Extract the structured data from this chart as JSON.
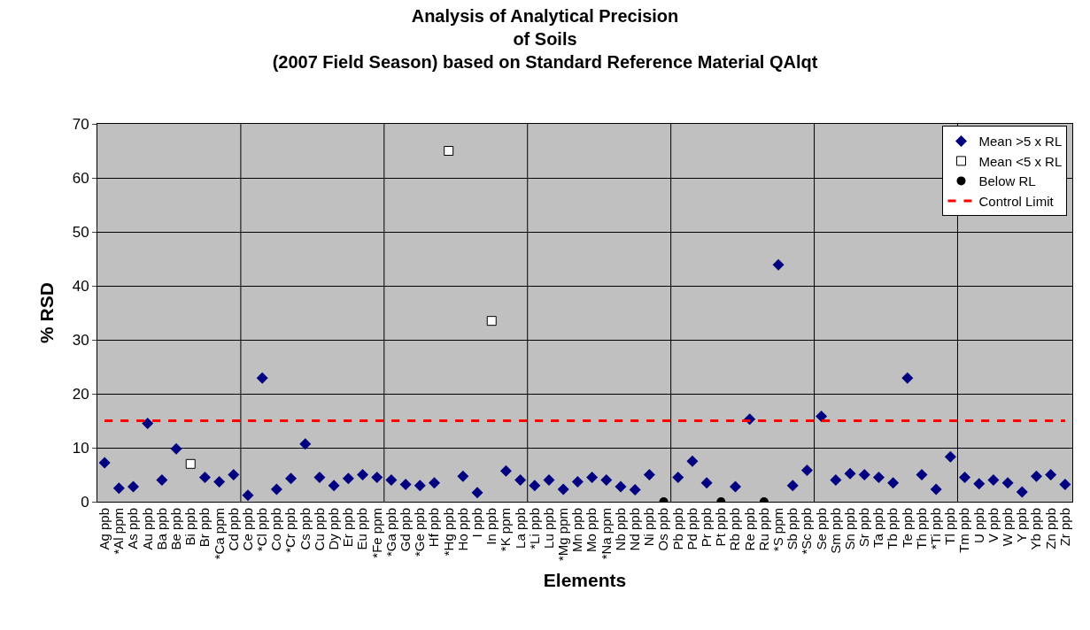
{
  "chart_data": {
    "type": "scatter",
    "title": "Analysis of Analytical Precision\nof Soils\n(2007 Field Season) based on Standard Reference Material QAlqt",
    "xlabel": "Elements",
    "ylabel": "% RSD",
    "categories": [
      "Ag ppb",
      "*Al ppm",
      "As ppb",
      "Au ppb",
      "Ba ppb",
      "Be ppb",
      "Bi ppb",
      "Br ppb",
      "*Ca ppm",
      "Cd ppb",
      "Ce ppb",
      "*Cl ppb",
      "Co ppb",
      "*Cr ppb",
      "Cs ppb",
      "Cu ppb",
      "Dy ppb",
      "Er ppb",
      "Eu ppb",
      "*Fe ppm",
      "*Ga ppb",
      "Gd ppb",
      "*Ge ppb",
      "Hf ppb",
      "*Hg ppb",
      "Ho ppb",
      "I ppb",
      "In ppb",
      "*K ppm",
      "La ppb",
      "*Li ppb",
      "Lu ppb",
      "*Mg ppm",
      "Mn ppb",
      "Mo ppb",
      "*Na ppm",
      "Nb ppb",
      "Nd ppb",
      "Ni ppb",
      "Os ppb",
      "Pb ppb",
      "Pd ppb",
      "Pr ppb",
      "Pt ppb",
      "Rb ppb",
      "Re ppb",
      "Ru ppb",
      "*S ppm",
      "Sb ppb",
      "*Sc ppb",
      "Se ppb",
      "Sm ppb",
      "Sn ppb",
      "Sr ppb",
      "Ta ppb",
      "Tb ppb",
      "Te ppb",
      "Th ppb",
      "*Ti ppb",
      "Tl ppb",
      "Tm ppb",
      "U ppb",
      "V ppb",
      "W ppb",
      "Y ppb",
      "Yb ppb",
      "Zn ppb",
      "Zr ppb"
    ],
    "series": [
      {
        "name": "Mean >5 x RL",
        "color": "#000080",
        "marker": "diamond",
        "values": [
          7.2,
          2.5,
          2.8,
          14.5,
          4.0,
          9.8,
          null,
          4.5,
          3.7,
          5.0,
          1.2,
          22.9,
          2.3,
          4.3,
          10.7,
          4.5,
          3.0,
          4.3,
          5.0,
          4.5,
          4.0,
          3.2,
          3.0,
          3.5,
          null,
          4.7,
          1.7,
          null,
          5.7,
          4.0,
          3.0,
          4.0,
          2.3,
          3.7,
          4.5,
          4.0,
          2.8,
          2.2,
          5.0,
          null,
          4.5,
          7.5,
          3.5,
          null,
          2.8,
          15.3,
          null,
          43.9,
          3.0,
          5.8,
          15.8,
          4.0,
          5.2,
          5.0,
          4.5,
          3.5,
          22.9,
          5.0,
          2.3,
          8.3,
          4.5,
          3.3,
          4.0,
          3.5,
          1.8,
          4.7,
          5.0,
          3.2
        ]
      },
      {
        "name": "Mean <5 x RL",
        "color": "#ffffff",
        "marker": "square",
        "values": [
          null,
          null,
          null,
          null,
          null,
          null,
          7.0,
          null,
          null,
          null,
          null,
          null,
          null,
          null,
          null,
          null,
          null,
          null,
          null,
          null,
          null,
          null,
          null,
          null,
          65,
          null,
          null,
          33.5,
          null,
          null,
          null,
          null,
          null,
          null,
          null,
          null,
          null,
          null,
          null,
          null,
          null,
          null,
          null,
          null,
          null,
          null,
          null,
          null,
          null,
          null,
          null,
          null,
          null,
          null,
          null,
          null,
          null,
          null,
          null,
          null,
          null,
          null,
          null,
          null,
          null,
          null,
          null,
          null
        ]
      },
      {
        "name": "Below RL",
        "color": "#000000",
        "marker": "circle",
        "values": [
          null,
          null,
          null,
          null,
          null,
          null,
          null,
          null,
          null,
          null,
          null,
          null,
          null,
          null,
          null,
          null,
          null,
          null,
          null,
          null,
          null,
          null,
          null,
          null,
          null,
          null,
          null,
          null,
          null,
          null,
          null,
          null,
          null,
          null,
          null,
          null,
          null,
          null,
          null,
          0,
          null,
          null,
          null,
          0,
          null,
          null,
          0,
          null,
          null,
          null,
          null,
          null,
          null,
          null,
          null,
          null,
          null,
          null,
          null,
          null,
          null,
          null,
          null,
          null,
          null,
          null,
          null,
          null
        ]
      },
      {
        "name": "Control Limit",
        "color": "#ff0000",
        "type": "line",
        "line_style": "dashed",
        "marker": "none",
        "values": [
          15,
          15,
          15,
          15,
          15,
          15,
          15,
          15,
          15,
          15,
          15,
          15,
          15,
          15,
          15,
          15,
          15,
          15,
          15,
          15,
          15,
          15,
          15,
          15,
          15,
          15,
          15,
          15,
          15,
          15,
          15,
          15,
          15,
          15,
          15,
          15,
          15,
          15,
          15,
          15,
          15,
          15,
          15,
          15,
          15,
          15,
          15,
          15,
          15,
          15,
          15,
          15,
          15,
          15,
          15,
          15,
          15,
          15,
          15,
          15,
          15,
          15,
          15,
          15,
          15,
          15,
          15,
          15
        ]
      }
    ],
    "ylim": [
      0,
      70
    ],
    "yticks": [
      0,
      10,
      20,
      30,
      40,
      50,
      60,
      70
    ],
    "grid": true,
    "legend": "top right"
  }
}
